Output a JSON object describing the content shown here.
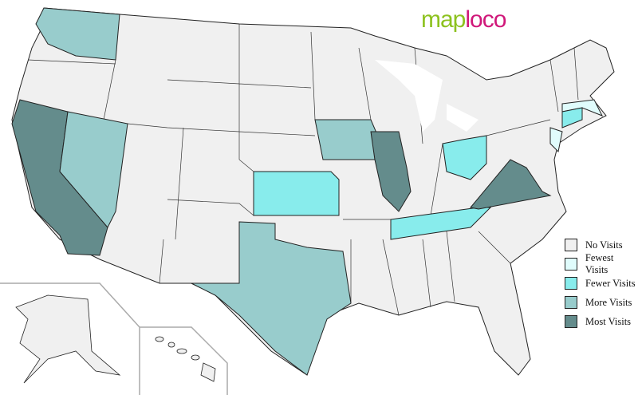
{
  "logo": {
    "part1": "map",
    "part2": "loco"
  },
  "legend": [
    {
      "label": "No Visits",
      "color": "#f0f0f0"
    },
    {
      "label": "Fewest Visits",
      "color": "#e0fcfc"
    },
    {
      "label": "Fewer Visits",
      "color": "#88ecec"
    },
    {
      "label": "More Visits",
      "color": "#98cccc"
    },
    {
      "label": "Most Visits",
      "color": "#648c8c"
    }
  ],
  "states": [
    {
      "name": "Washington",
      "level": "More Visits"
    },
    {
      "name": "California",
      "level": "Most Visits"
    },
    {
      "name": "Nevada",
      "level": "More Visits"
    },
    {
      "name": "Texas",
      "level": "More Visits"
    },
    {
      "name": "Kansas",
      "level": "Fewer Visits"
    },
    {
      "name": "Iowa",
      "level": "More Visits"
    },
    {
      "name": "Illinois",
      "level": "Most Visits"
    },
    {
      "name": "Ohio",
      "level": "Fewer Visits"
    },
    {
      "name": "Tennessee",
      "level": "Fewer Visits"
    },
    {
      "name": "Virginia",
      "level": "Most Visits"
    },
    {
      "name": "Massachusetts",
      "level": "Fewest Visits"
    },
    {
      "name": "Connecticut",
      "level": "Fewer Visits"
    },
    {
      "name": "New Jersey",
      "level": "Fewest Visits"
    }
  ]
}
